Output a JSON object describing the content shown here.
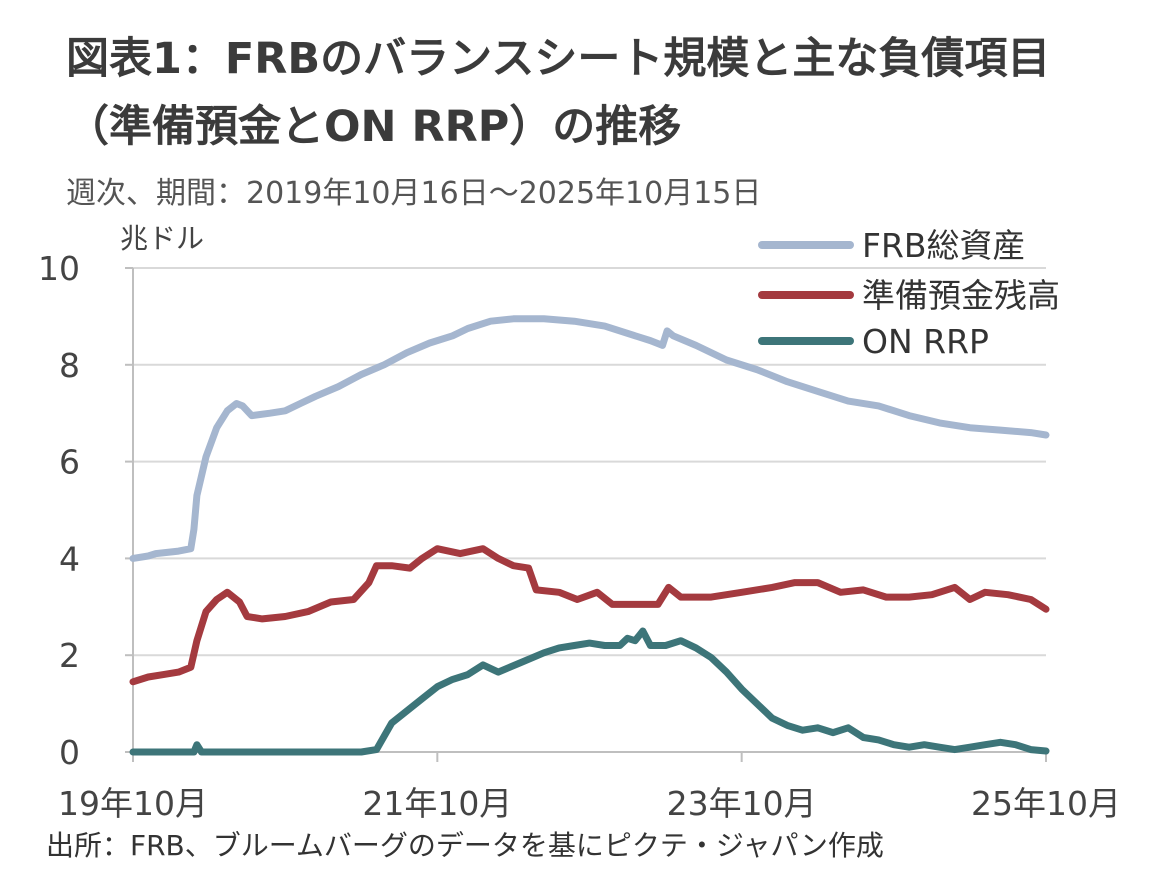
{
  "title_line1": "図表1：FRBのバランスシート規模と主な負債項目",
  "title_line2": "（準備預金とON RRP）の推移",
  "subtitle": "週次、期間：2019年10月16日～2025年10月15日",
  "source": "出所：FRB、ブルームバーグのデータを基にピクテ・ジャパン作成",
  "chart_data": {
    "type": "line",
    "ylabel": "兆ドル",
    "ylim": [
      0,
      10
    ],
    "yticks": [
      0,
      2,
      4,
      6,
      8,
      10
    ],
    "xlim": [
      2019.8,
      2025.8
    ],
    "xticks": [
      {
        "x": 2019.8,
        "label": "19年10月"
      },
      {
        "x": 2021.8,
        "label": "21年10月"
      },
      {
        "x": 2023.8,
        "label": "23年10月"
      },
      {
        "x": 2025.8,
        "label": "25年10月"
      }
    ],
    "grid": true,
    "legend": "top-right",
    "series": [
      {
        "name": "FRB総資産",
        "color": "#a5b6cf",
        "points": [
          [
            2019.8,
            4.0
          ],
          [
            2019.9,
            4.05
          ],
          [
            2019.95,
            4.1
          ],
          [
            2020.1,
            4.15
          ],
          [
            2020.18,
            4.2
          ],
          [
            2020.2,
            4.6
          ],
          [
            2020.22,
            5.3
          ],
          [
            2020.28,
            6.1
          ],
          [
            2020.35,
            6.7
          ],
          [
            2020.42,
            7.05
          ],
          [
            2020.48,
            7.2
          ],
          [
            2020.52,
            7.15
          ],
          [
            2020.58,
            6.95
          ],
          [
            2020.7,
            7.0
          ],
          [
            2020.8,
            7.05
          ],
          [
            2020.9,
            7.2
          ],
          [
            2021.0,
            7.35
          ],
          [
            2021.15,
            7.55
          ],
          [
            2021.3,
            7.8
          ],
          [
            2021.45,
            8.0
          ],
          [
            2021.6,
            8.25
          ],
          [
            2021.75,
            8.45
          ],
          [
            2021.9,
            8.6
          ],
          [
            2022.0,
            8.75
          ],
          [
            2022.15,
            8.9
          ],
          [
            2022.3,
            8.95
          ],
          [
            2022.5,
            8.95
          ],
          [
            2022.7,
            8.9
          ],
          [
            2022.9,
            8.8
          ],
          [
            2023.1,
            8.6
          ],
          [
            2023.2,
            8.5
          ],
          [
            2023.28,
            8.4
          ],
          [
            2023.31,
            8.7
          ],
          [
            2023.35,
            8.6
          ],
          [
            2023.5,
            8.4
          ],
          [
            2023.7,
            8.1
          ],
          [
            2023.9,
            7.9
          ],
          [
            2024.1,
            7.65
          ],
          [
            2024.3,
            7.45
          ],
          [
            2024.5,
            7.25
          ],
          [
            2024.7,
            7.15
          ],
          [
            2024.9,
            6.95
          ],
          [
            2025.1,
            6.8
          ],
          [
            2025.3,
            6.7
          ],
          [
            2025.5,
            6.65
          ],
          [
            2025.7,
            6.6
          ],
          [
            2025.8,
            6.55
          ]
        ]
      },
      {
        "name": "準備預金残高",
        "color": "#a43a3f",
        "points": [
          [
            2019.8,
            1.45
          ],
          [
            2019.9,
            1.55
          ],
          [
            2020.0,
            1.6
          ],
          [
            2020.1,
            1.65
          ],
          [
            2020.18,
            1.75
          ],
          [
            2020.22,
            2.3
          ],
          [
            2020.28,
            2.9
          ],
          [
            2020.35,
            3.15
          ],
          [
            2020.42,
            3.3
          ],
          [
            2020.5,
            3.1
          ],
          [
            2020.55,
            2.8
          ],
          [
            2020.65,
            2.75
          ],
          [
            2020.8,
            2.8
          ],
          [
            2020.95,
            2.9
          ],
          [
            2021.1,
            3.1
          ],
          [
            2021.25,
            3.15
          ],
          [
            2021.35,
            3.5
          ],
          [
            2021.4,
            3.85
          ],
          [
            2021.5,
            3.85
          ],
          [
            2021.62,
            3.8
          ],
          [
            2021.7,
            4.0
          ],
          [
            2021.8,
            4.2
          ],
          [
            2021.95,
            4.1
          ],
          [
            2022.1,
            4.2
          ],
          [
            2022.2,
            4.0
          ],
          [
            2022.3,
            3.85
          ],
          [
            2022.4,
            3.8
          ],
          [
            2022.45,
            3.35
          ],
          [
            2022.6,
            3.3
          ],
          [
            2022.72,
            3.15
          ],
          [
            2022.85,
            3.3
          ],
          [
            2022.95,
            3.05
          ],
          [
            2023.1,
            3.05
          ],
          [
            2023.25,
            3.05
          ],
          [
            2023.32,
            3.4
          ],
          [
            2023.4,
            3.2
          ],
          [
            2023.6,
            3.2
          ],
          [
            2023.8,
            3.3
          ],
          [
            2024.0,
            3.4
          ],
          [
            2024.15,
            3.5
          ],
          [
            2024.3,
            3.5
          ],
          [
            2024.45,
            3.3
          ],
          [
            2024.6,
            3.35
          ],
          [
            2024.75,
            3.2
          ],
          [
            2024.9,
            3.2
          ],
          [
            2025.05,
            3.25
          ],
          [
            2025.2,
            3.4
          ],
          [
            2025.3,
            3.15
          ],
          [
            2025.4,
            3.3
          ],
          [
            2025.55,
            3.25
          ],
          [
            2025.7,
            3.15
          ],
          [
            2025.8,
            2.95
          ]
        ]
      },
      {
        "name": "ON RRP",
        "color": "#3d7579",
        "points": [
          [
            2019.8,
            0.0
          ],
          [
            2020.2,
            0.0
          ],
          [
            2020.22,
            0.15
          ],
          [
            2020.25,
            0.0
          ],
          [
            2021.3,
            0.0
          ],
          [
            2021.4,
            0.05
          ],
          [
            2021.5,
            0.6
          ],
          [
            2021.6,
            0.85
          ],
          [
            2021.7,
            1.1
          ],
          [
            2021.8,
            1.35
          ],
          [
            2021.9,
            1.5
          ],
          [
            2022.0,
            1.6
          ],
          [
            2022.1,
            1.8
          ],
          [
            2022.2,
            1.65
          ],
          [
            2022.35,
            1.85
          ],
          [
            2022.5,
            2.05
          ],
          [
            2022.6,
            2.15
          ],
          [
            2022.7,
            2.2
          ],
          [
            2022.8,
            2.25
          ],
          [
            2022.9,
            2.2
          ],
          [
            2023.0,
            2.2
          ],
          [
            2023.05,
            2.35
          ],
          [
            2023.1,
            2.3
          ],
          [
            2023.15,
            2.5
          ],
          [
            2023.2,
            2.2
          ],
          [
            2023.3,
            2.2
          ],
          [
            2023.4,
            2.3
          ],
          [
            2023.5,
            2.15
          ],
          [
            2023.6,
            1.95
          ],
          [
            2023.7,
            1.65
          ],
          [
            2023.8,
            1.3
          ],
          [
            2023.9,
            1.0
          ],
          [
            2024.0,
            0.7
          ],
          [
            2024.1,
            0.55
          ],
          [
            2024.2,
            0.45
          ],
          [
            2024.3,
            0.5
          ],
          [
            2024.4,
            0.4
          ],
          [
            2024.5,
            0.5
          ],
          [
            2024.6,
            0.3
          ],
          [
            2024.7,
            0.25
          ],
          [
            2024.8,
            0.15
          ],
          [
            2024.9,
            0.1
          ],
          [
            2025.0,
            0.15
          ],
          [
            2025.1,
            0.1
          ],
          [
            2025.2,
            0.05
          ],
          [
            2025.3,
            0.1
          ],
          [
            2025.4,
            0.15
          ],
          [
            2025.5,
            0.2
          ],
          [
            2025.6,
            0.15
          ],
          [
            2025.7,
            0.05
          ],
          [
            2025.8,
            0.02
          ]
        ]
      }
    ]
  }
}
